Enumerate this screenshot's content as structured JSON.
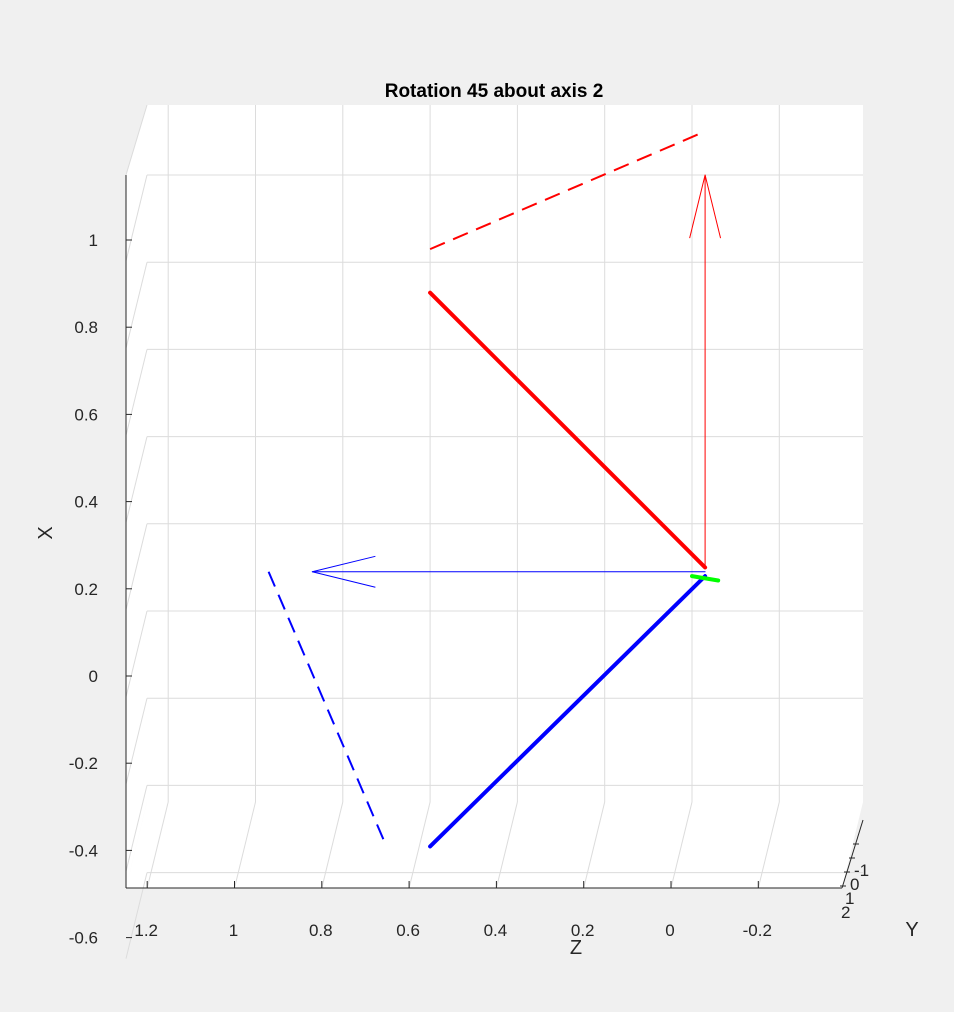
{
  "chart_data": {
    "type": "line",
    "title": "Rotation 45 about axis 2",
    "xlabel": "Z",
    "ylabel": "X",
    "zlabel": "Y",
    "grid": true,
    "view": "3D, looking nearly along the Y axis",
    "horizontal_axis": {
      "variable": "Z",
      "reversed": true,
      "ticks": [
        1.2,
        1,
        0.8,
        0.6,
        0.4,
        0.2,
        0,
        -0.2
      ],
      "tick_labels": [
        "1.2",
        "1",
        "0.8",
        "0.6",
        "0.4",
        "0.2",
        "0",
        "-0.2"
      ]
    },
    "vertical_axis": {
      "variable": "X",
      "ticks": [
        1,
        0.8,
        0.6,
        0.4,
        0.2,
        0,
        -0.2,
        -0.4,
        -0.6
      ],
      "tick_labels": [
        "1",
        "0.8",
        "0.6",
        "0.4",
        "0.2",
        "0",
        "-0.2",
        "-0.4",
        "-0.6"
      ]
    },
    "depth_axis": {
      "variable": "Y",
      "ticks": [
        -1,
        0,
        1,
        2
      ],
      "tick_labels": [
        "-1",
        "0",
        "1",
        "2"
      ]
    },
    "series": [
      {
        "color": "#ff0000",
        "style": "dashed",
        "width": 2,
        "points": [
          {
            "z": 0.6,
            "x": 0.83
          },
          {
            "z": -0.03,
            "x": 1.1
          }
        ]
      },
      {
        "color": "#ff0000",
        "style": "solid",
        "width": 4,
        "points": [
          {
            "z": 0.6,
            "x": 0.73
          },
          {
            "z": -0.03,
            "x": 0.1
          }
        ]
      },
      {
        "color": "#ff0000",
        "style": "arrow",
        "width": 1,
        "points": [
          {
            "z": -0.03,
            "x": 0.1
          },
          {
            "z": -0.03,
            "x": 1.0
          }
        ]
      },
      {
        "color": "#0000ff",
        "style": "dashed",
        "width": 2,
        "points": [
          {
            "z": 0.97,
            "x": 0.09
          },
          {
            "z": 0.7,
            "x": -0.54
          }
        ]
      },
      {
        "color": "#0000ff",
        "style": "solid",
        "width": 4,
        "points": [
          {
            "z": 0.6,
            "x": -0.54
          },
          {
            "z": -0.03,
            "x": 0.08
          }
        ]
      },
      {
        "color": "#0000ff",
        "style": "arrow",
        "width": 1,
        "points": [
          {
            "z": -0.03,
            "x": 0.09
          },
          {
            "z": 0.87,
            "x": 0.09
          }
        ]
      },
      {
        "color": "#00ff00",
        "style": "solid",
        "width": 4,
        "points": [
          {
            "z": 0.0,
            "x": 0.08
          },
          {
            "z": -0.06,
            "x": 0.07
          }
        ]
      }
    ],
    "colors": {
      "background": "#f0f0f0",
      "axes_background": "#ffffff",
      "grid": "#dcdcdc",
      "axis_line": "#262626",
      "red": "#ff0000",
      "blue": "#0000ff",
      "green": "#00ff00"
    }
  }
}
